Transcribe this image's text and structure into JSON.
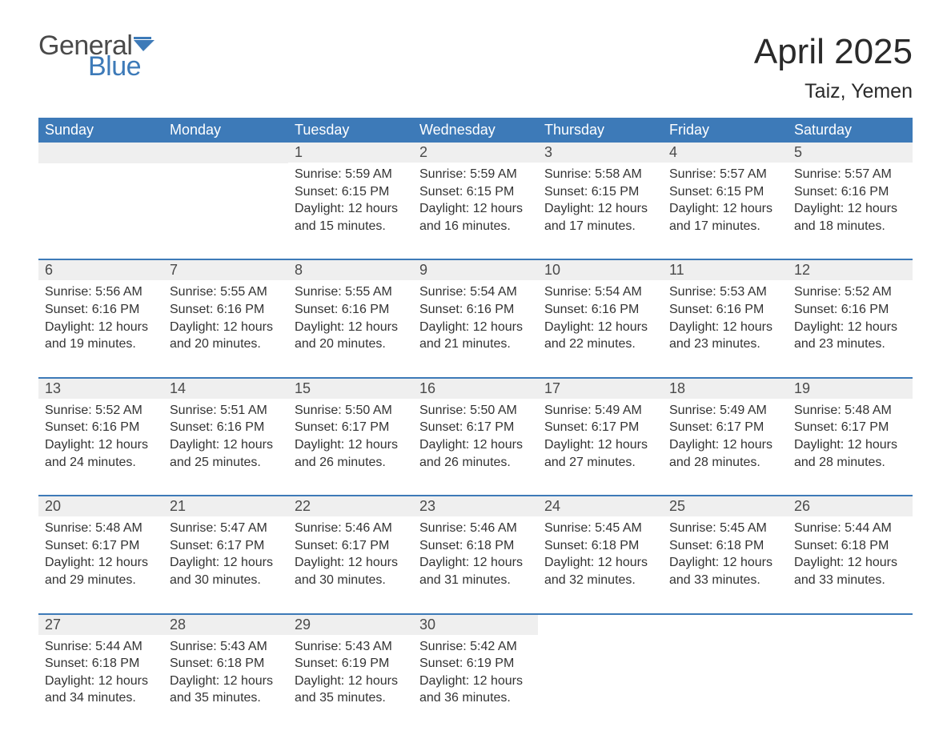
{
  "logo": {
    "word1": "General",
    "word2": "Blue",
    "text_color": "#4a4a4a",
    "accent_color": "#3d7ab8"
  },
  "title": "April 2025",
  "location": "Taiz, Yemen",
  "colors": {
    "header_bg": "#3d7ab8",
    "header_text": "#ffffff",
    "daynum_bg": "#efefef",
    "body_text": "#333333",
    "divider": "#3d7ab8",
    "page_bg": "#ffffff"
  },
  "weekdays": [
    "Sunday",
    "Monday",
    "Tuesday",
    "Wednesday",
    "Thursday",
    "Friday",
    "Saturday"
  ],
  "weeks": [
    [
      {
        "day": "",
        "sunrise": "",
        "sunset": "",
        "daylight": ""
      },
      {
        "day": "",
        "sunrise": "",
        "sunset": "",
        "daylight": ""
      },
      {
        "day": "1",
        "sunrise": "Sunrise: 5:59 AM",
        "sunset": "Sunset: 6:15 PM",
        "daylight": "Daylight: 12 hours and 15 minutes."
      },
      {
        "day": "2",
        "sunrise": "Sunrise: 5:59 AM",
        "sunset": "Sunset: 6:15 PM",
        "daylight": "Daylight: 12 hours and 16 minutes."
      },
      {
        "day": "3",
        "sunrise": "Sunrise: 5:58 AM",
        "sunset": "Sunset: 6:15 PM",
        "daylight": "Daylight: 12 hours and 17 minutes."
      },
      {
        "day": "4",
        "sunrise": "Sunrise: 5:57 AM",
        "sunset": "Sunset: 6:15 PM",
        "daylight": "Daylight: 12 hours and 17 minutes."
      },
      {
        "day": "5",
        "sunrise": "Sunrise: 5:57 AM",
        "sunset": "Sunset: 6:16 PM",
        "daylight": "Daylight: 12 hours and 18 minutes."
      }
    ],
    [
      {
        "day": "6",
        "sunrise": "Sunrise: 5:56 AM",
        "sunset": "Sunset: 6:16 PM",
        "daylight": "Daylight: 12 hours and 19 minutes."
      },
      {
        "day": "7",
        "sunrise": "Sunrise: 5:55 AM",
        "sunset": "Sunset: 6:16 PM",
        "daylight": "Daylight: 12 hours and 20 minutes."
      },
      {
        "day": "8",
        "sunrise": "Sunrise: 5:55 AM",
        "sunset": "Sunset: 6:16 PM",
        "daylight": "Daylight: 12 hours and 20 minutes."
      },
      {
        "day": "9",
        "sunrise": "Sunrise: 5:54 AM",
        "sunset": "Sunset: 6:16 PM",
        "daylight": "Daylight: 12 hours and 21 minutes."
      },
      {
        "day": "10",
        "sunrise": "Sunrise: 5:54 AM",
        "sunset": "Sunset: 6:16 PM",
        "daylight": "Daylight: 12 hours and 22 minutes."
      },
      {
        "day": "11",
        "sunrise": "Sunrise: 5:53 AM",
        "sunset": "Sunset: 6:16 PM",
        "daylight": "Daylight: 12 hours and 23 minutes."
      },
      {
        "day": "12",
        "sunrise": "Sunrise: 5:52 AM",
        "sunset": "Sunset: 6:16 PM",
        "daylight": "Daylight: 12 hours and 23 minutes."
      }
    ],
    [
      {
        "day": "13",
        "sunrise": "Sunrise: 5:52 AM",
        "sunset": "Sunset: 6:16 PM",
        "daylight": "Daylight: 12 hours and 24 minutes."
      },
      {
        "day": "14",
        "sunrise": "Sunrise: 5:51 AM",
        "sunset": "Sunset: 6:16 PM",
        "daylight": "Daylight: 12 hours and 25 minutes."
      },
      {
        "day": "15",
        "sunrise": "Sunrise: 5:50 AM",
        "sunset": "Sunset: 6:17 PM",
        "daylight": "Daylight: 12 hours and 26 minutes."
      },
      {
        "day": "16",
        "sunrise": "Sunrise: 5:50 AM",
        "sunset": "Sunset: 6:17 PM",
        "daylight": "Daylight: 12 hours and 26 minutes."
      },
      {
        "day": "17",
        "sunrise": "Sunrise: 5:49 AM",
        "sunset": "Sunset: 6:17 PM",
        "daylight": "Daylight: 12 hours and 27 minutes."
      },
      {
        "day": "18",
        "sunrise": "Sunrise: 5:49 AM",
        "sunset": "Sunset: 6:17 PM",
        "daylight": "Daylight: 12 hours and 28 minutes."
      },
      {
        "day": "19",
        "sunrise": "Sunrise: 5:48 AM",
        "sunset": "Sunset: 6:17 PM",
        "daylight": "Daylight: 12 hours and 28 minutes."
      }
    ],
    [
      {
        "day": "20",
        "sunrise": "Sunrise: 5:48 AM",
        "sunset": "Sunset: 6:17 PM",
        "daylight": "Daylight: 12 hours and 29 minutes."
      },
      {
        "day": "21",
        "sunrise": "Sunrise: 5:47 AM",
        "sunset": "Sunset: 6:17 PM",
        "daylight": "Daylight: 12 hours and 30 minutes."
      },
      {
        "day": "22",
        "sunrise": "Sunrise: 5:46 AM",
        "sunset": "Sunset: 6:17 PM",
        "daylight": "Daylight: 12 hours and 30 minutes."
      },
      {
        "day": "23",
        "sunrise": "Sunrise: 5:46 AM",
        "sunset": "Sunset: 6:18 PM",
        "daylight": "Daylight: 12 hours and 31 minutes."
      },
      {
        "day": "24",
        "sunrise": "Sunrise: 5:45 AM",
        "sunset": "Sunset: 6:18 PM",
        "daylight": "Daylight: 12 hours and 32 minutes."
      },
      {
        "day": "25",
        "sunrise": "Sunrise: 5:45 AM",
        "sunset": "Sunset: 6:18 PM",
        "daylight": "Daylight: 12 hours and 33 minutes."
      },
      {
        "day": "26",
        "sunrise": "Sunrise: 5:44 AM",
        "sunset": "Sunset: 6:18 PM",
        "daylight": "Daylight: 12 hours and 33 minutes."
      }
    ],
    [
      {
        "day": "27",
        "sunrise": "Sunrise: 5:44 AM",
        "sunset": "Sunset: 6:18 PM",
        "daylight": "Daylight: 12 hours and 34 minutes."
      },
      {
        "day": "28",
        "sunrise": "Sunrise: 5:43 AM",
        "sunset": "Sunset: 6:18 PM",
        "daylight": "Daylight: 12 hours and 35 minutes."
      },
      {
        "day": "29",
        "sunrise": "Sunrise: 5:43 AM",
        "sunset": "Sunset: 6:19 PM",
        "daylight": "Daylight: 12 hours and 35 minutes."
      },
      {
        "day": "30",
        "sunrise": "Sunrise: 5:42 AM",
        "sunset": "Sunset: 6:19 PM",
        "daylight": "Daylight: 12 hours and 36 minutes."
      },
      {
        "day": "",
        "sunrise": "",
        "sunset": "",
        "daylight": ""
      },
      {
        "day": "",
        "sunrise": "",
        "sunset": "",
        "daylight": ""
      },
      {
        "day": "",
        "sunrise": "",
        "sunset": "",
        "daylight": ""
      }
    ]
  ]
}
